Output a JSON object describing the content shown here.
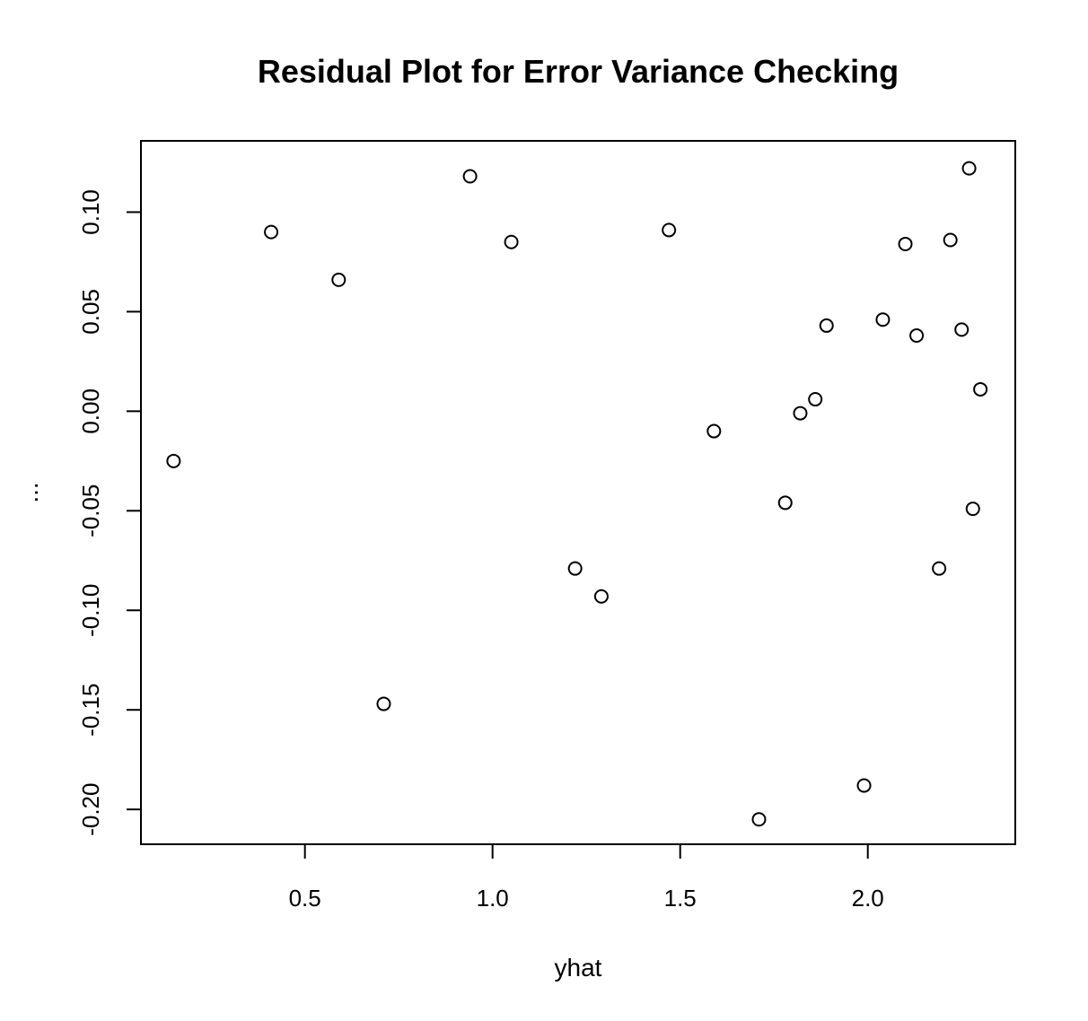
{
  "chart_data": {
    "type": "scatter",
    "title": "Residual Plot for Error Variance Checking",
    "xlabel": "yhat",
    "ylabel": "...",
    "xlim": [
      0.063,
      2.393
    ],
    "ylim": [
      -0.2175,
      0.1358
    ],
    "x_ticks": [
      {
        "value": 0.5,
        "label": "0.5"
      },
      {
        "value": 1.0,
        "label": "1.0"
      },
      {
        "value": 1.5,
        "label": "1.5"
      },
      {
        "value": 2.0,
        "label": "2.0"
      }
    ],
    "y_ticks": [
      {
        "value": -0.2,
        "label": "-0.20"
      },
      {
        "value": -0.15,
        "label": "-0.15"
      },
      {
        "value": -0.1,
        "label": "-0.10"
      },
      {
        "value": -0.05,
        "label": "-0.05"
      },
      {
        "value": 0.0,
        "label": "0.00"
      },
      {
        "value": 0.05,
        "label": "0.05"
      },
      {
        "value": 0.1,
        "label": "0.10"
      }
    ],
    "grid": false,
    "marker": "open-circle",
    "points": [
      {
        "x": 0.15,
        "y": -0.025
      },
      {
        "x": 0.41,
        "y": 0.09
      },
      {
        "x": 0.59,
        "y": 0.066
      },
      {
        "x": 0.71,
        "y": -0.147
      },
      {
        "x": 0.94,
        "y": 0.118
      },
      {
        "x": 1.05,
        "y": 0.085
      },
      {
        "x": 1.22,
        "y": -0.079
      },
      {
        "x": 1.29,
        "y": -0.093
      },
      {
        "x": 1.47,
        "y": 0.091
      },
      {
        "x": 1.59,
        "y": -0.01
      },
      {
        "x": 1.71,
        "y": -0.205
      },
      {
        "x": 1.78,
        "y": -0.046
      },
      {
        "x": 1.82,
        "y": -0.001
      },
      {
        "x": 1.86,
        "y": 0.006
      },
      {
        "x": 1.89,
        "y": 0.043
      },
      {
        "x": 1.99,
        "y": -0.188
      },
      {
        "x": 2.04,
        "y": 0.046
      },
      {
        "x": 2.1,
        "y": 0.084
      },
      {
        "x": 2.13,
        "y": 0.038
      },
      {
        "x": 2.19,
        "y": -0.079
      },
      {
        "x": 2.22,
        "y": 0.086
      },
      {
        "x": 2.25,
        "y": 0.041
      },
      {
        "x": 2.27,
        "y": 0.122
      },
      {
        "x": 2.28,
        "y": -0.049
      },
      {
        "x": 2.3,
        "y": 0.011
      }
    ]
  }
}
